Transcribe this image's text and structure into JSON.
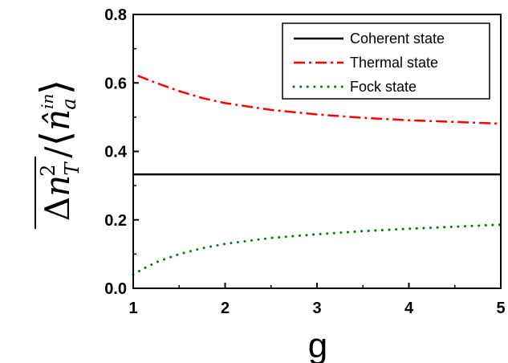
{
  "chart_data": {
    "type": "line",
    "xlabel": "g",
    "ylabel": "Δn_T² / ⟨n̂_a^in⟩",
    "ylabel_parts": {
      "delta": "Δ",
      "n": "n",
      "sub": "T",
      "sup": "2",
      "slash": "/",
      "left_bracket": "⟨",
      "n_hat": "n̂",
      "hat_sub": "a",
      "hat_sup": "in",
      "right_bracket": "⟩"
    },
    "xlim": [
      1,
      5
    ],
    "ylim": [
      0.0,
      0.8
    ],
    "x_ticks": [
      "1",
      "2",
      "3",
      "4",
      "5"
    ],
    "y_ticks": [
      "0.0",
      "0.2",
      "0.4",
      "0.6",
      "0.8"
    ],
    "grid": false,
    "legend_position": "top-right",
    "series": [
      {
        "name": "Coherent state",
        "color": "#000000",
        "style": "solid",
        "x": [
          1.0,
          1.5,
          2.0,
          2.5,
          3.0,
          3.5,
          4.0,
          4.5,
          5.0
        ],
        "y": [
          0.333,
          0.333,
          0.333,
          0.333,
          0.333,
          0.333,
          0.333,
          0.333,
          0.333
        ]
      },
      {
        "name": "Thermal state",
        "color": "#ff0000",
        "style": "dashdot",
        "x": [
          1.05,
          1.25,
          1.5,
          1.75,
          2.0,
          2.5,
          3.0,
          3.5,
          4.0,
          4.5,
          5.0
        ],
        "y": [
          0.621,
          0.6,
          0.576,
          0.556,
          0.541,
          0.521,
          0.508,
          0.498,
          0.491,
          0.486,
          0.481
        ]
      },
      {
        "name": "Fock state",
        "color": "#008000",
        "style": "dotted",
        "x": [
          1.0,
          1.1,
          1.25,
          1.5,
          1.75,
          2.0,
          2.5,
          3.0,
          3.5,
          4.0,
          4.5,
          5.0
        ],
        "y": [
          0.04,
          0.056,
          0.076,
          0.1,
          0.117,
          0.13,
          0.147,
          0.158,
          0.167,
          0.174,
          0.18,
          0.186
        ]
      }
    ]
  }
}
